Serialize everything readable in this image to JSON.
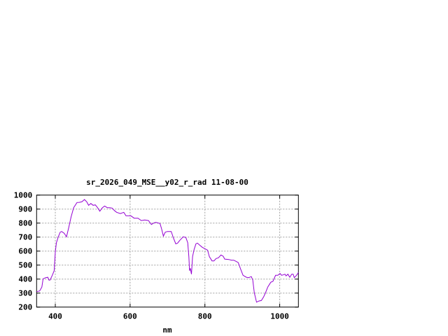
{
  "chart_data": {
    "type": "line",
    "title": "sr_2026_049_MSE__y02_r_rad 11-08-00",
    "xlabel": "nm",
    "ylabel": "",
    "xlim": [
      350,
      1050
    ],
    "ylim": [
      200,
      1000
    ],
    "xticks": [
      400,
      600,
      800,
      1000
    ],
    "yticks": [
      200,
      300,
      400,
      500,
      600,
      700,
      800,
      900,
      1000
    ],
    "grid": true,
    "line_color": "#9400d3",
    "series": [
      {
        "x": [
          350,
          358,
          364,
          367.5,
          374,
          380,
          383,
          386,
          392,
          397,
          400,
          403,
          408,
          413,
          417,
          424,
          430,
          436,
          442,
          449,
          458,
          464,
          471,
          478,
          484,
          489,
          495,
          501,
          507,
          513,
          519,
          526,
          532,
          539,
          546,
          552,
          558,
          564,
          574,
          583,
          589,
          602,
          611,
          621,
          630,
          639,
          649,
          657,
          664,
          669,
          680,
          684,
          689,
          694,
          700,
          710,
          716,
          722,
          727,
          733,
          742,
          749,
          754,
          757,
          759,
          761,
          764,
          767,
          771,
          776,
          780,
          786,
          793,
          799,
          807,
          812,
          819,
          824,
          830,
          836,
          843,
          849,
          853,
          864,
          871,
          877,
          883,
          889,
          896,
          902,
          911,
          917,
          924,
          928,
          932,
          938,
          944,
          951,
          957,
          962,
          968,
          976,
          982,
          989,
          995,
          1001,
          1005,
          1009,
          1014,
          1017,
          1022,
          1027,
          1032,
          1036,
          1039,
          1045,
          1050
        ],
        "y": [
          310,
          315,
          343,
          402,
          410,
          413,
          393,
          393,
          427,
          460,
          593,
          660,
          702,
          735,
          740,
          727,
          702,
          768,
          843,
          910,
          947,
          948,
          952,
          968,
          952,
          927,
          940,
          927,
          930,
          910,
          885,
          910,
          922,
          910,
          910,
          907,
          890,
          877,
          868,
          877,
          852,
          852,
          835,
          835,
          818,
          822,
          818,
          790,
          802,
          805,
          797,
          760,
          707,
          735,
          740,
          740,
          693,
          652,
          657,
          677,
          702,
          697,
          660,
          560,
          460,
          477,
          435,
          560,
          610,
          652,
          657,
          643,
          627,
          618,
          607,
          560,
          530,
          530,
          547,
          552,
          572,
          563,
          543,
          540,
          535,
          535,
          527,
          518,
          468,
          427,
          413,
          410,
          418,
          393,
          302,
          235,
          243,
          247,
          273,
          302,
          343,
          377,
          385,
          427,
          427,
          440,
          427,
          430,
          435,
          423,
          435,
          413,
          435,
          435,
          410,
          427,
          447
        ]
      }
    ]
  }
}
